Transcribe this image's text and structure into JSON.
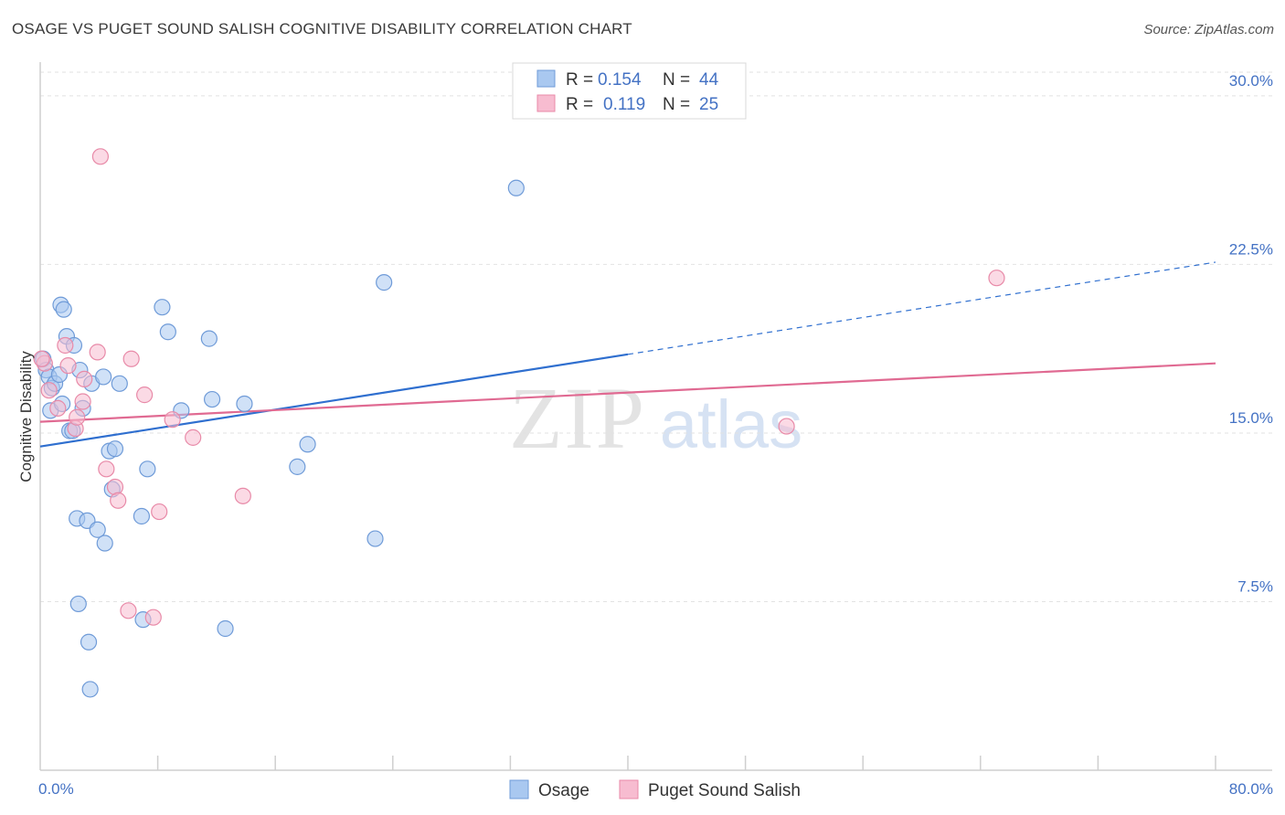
{
  "title": "OSAGE VS PUGET SOUND SALISH COGNITIVE DISABILITY CORRELATION CHART",
  "source": "Source: ZipAtlas.com",
  "watermark": {
    "zip": "ZIP",
    "atlas": "atlas"
  },
  "chart_data": {
    "type": "scatter",
    "ylabel": "Cognitive Disability",
    "xlim": [
      0,
      80
    ],
    "ylim": [
      0,
      31.5
    ],
    "x_tick_labels": [
      "0.0%",
      "80.0%"
    ],
    "y_ticks": [
      7.5,
      15.0,
      22.5,
      30.0
    ],
    "y_tick_labels": [
      "7.5%",
      "15.0%",
      "22.5%",
      "30.0%"
    ],
    "grid": "horizontal-dashed",
    "legend_top": {
      "rows": [
        {
          "r_label": "R =",
          "r_value": "0.154",
          "n_label": "N =",
          "n_value": "44"
        },
        {
          "r_label": "R =",
          "r_value": "0.119",
          "n_label": "N =",
          "n_value": "25"
        }
      ]
    },
    "series": [
      {
        "name": "Osage",
        "color": "#a9c8f0",
        "edge": "#6f9bd8",
        "line_color": "#2f6fcf",
        "trend": {
          "x0": 0,
          "y0": 14.4,
          "x1": 40,
          "y1": 18.5,
          "dash_to_x": 80,
          "dash_to_y": 22.6
        },
        "points": [
          [
            0.2,
            18.3
          ],
          [
            0.4,
            17.8
          ],
          [
            0.6,
            17.5
          ],
          [
            0.8,
            17.0
          ],
          [
            1.0,
            17.2
          ],
          [
            0.7,
            16.0
          ],
          [
            1.3,
            17.6
          ],
          [
            1.5,
            16.3
          ],
          [
            1.4,
            20.7
          ],
          [
            1.6,
            20.5
          ],
          [
            1.8,
            19.3
          ],
          [
            2.3,
            18.9
          ],
          [
            2.0,
            15.1
          ],
          [
            2.2,
            15.1
          ],
          [
            2.7,
            17.8
          ],
          [
            2.9,
            16.1
          ],
          [
            3.5,
            17.2
          ],
          [
            4.3,
            17.5
          ],
          [
            4.7,
            14.2
          ],
          [
            5.1,
            14.3
          ],
          [
            5.4,
            17.2
          ],
          [
            4.9,
            12.5
          ],
          [
            2.5,
            11.2
          ],
          [
            3.2,
            11.1
          ],
          [
            3.9,
            10.7
          ],
          [
            4.4,
            10.1
          ],
          [
            6.9,
            11.3
          ],
          [
            7.3,
            13.4
          ],
          [
            8.3,
            20.6
          ],
          [
            8.7,
            19.5
          ],
          [
            9.6,
            16.0
          ],
          [
            11.5,
            19.2
          ],
          [
            11.7,
            16.5
          ],
          [
            13.9,
            16.3
          ],
          [
            7.0,
            6.7
          ],
          [
            12.6,
            6.3
          ],
          [
            2.6,
            7.4
          ],
          [
            3.3,
            5.7
          ],
          [
            3.4,
            3.6
          ],
          [
            17.5,
            13.5
          ],
          [
            18.2,
            14.5
          ],
          [
            22.8,
            10.3
          ],
          [
            23.4,
            21.7
          ],
          [
            32.4,
            25.9
          ]
        ]
      },
      {
        "name": "Puget Sound Salish",
        "color": "#f7bcd0",
        "edge": "#e88aa8",
        "line_color": "#e06a92",
        "trend": {
          "x0": 0,
          "y0": 15.5,
          "x1": 80,
          "y1": 18.1
        },
        "points": [
          [
            0.3,
            18.1
          ],
          [
            0.6,
            16.9
          ],
          [
            1.2,
            16.1
          ],
          [
            1.7,
            18.9
          ],
          [
            1.9,
            18.0
          ],
          [
            2.4,
            15.2
          ],
          [
            2.5,
            15.7
          ],
          [
            2.9,
            16.4
          ],
          [
            3.0,
            17.4
          ],
          [
            3.9,
            18.6
          ],
          [
            4.1,
            27.3
          ],
          [
            4.5,
            13.4
          ],
          [
            5.1,
            12.6
          ],
          [
            5.3,
            12.0
          ],
          [
            6.2,
            18.3
          ],
          [
            7.1,
            16.7
          ],
          [
            6.0,
            7.1
          ],
          [
            7.7,
            6.8
          ],
          [
            8.1,
            11.5
          ],
          [
            9.0,
            15.6
          ],
          [
            10.4,
            14.8
          ],
          [
            13.8,
            12.2
          ],
          [
            50.8,
            15.3
          ],
          [
            65.1,
            21.9
          ],
          [
            0.1,
            18.3
          ]
        ]
      }
    ]
  }
}
